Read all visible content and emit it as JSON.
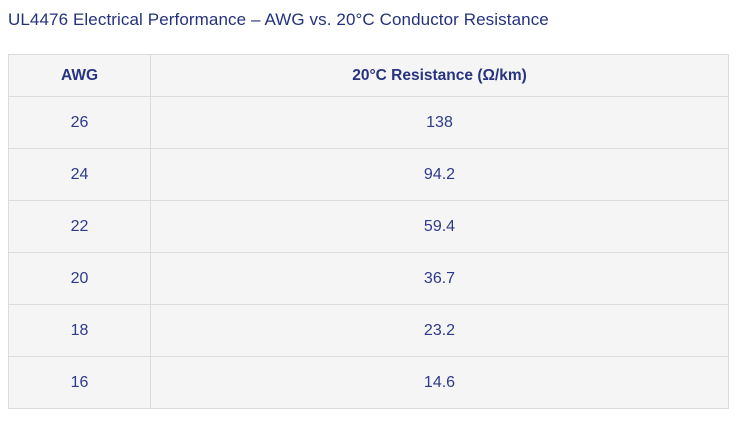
{
  "page": {
    "title": "UL4476 Electrical Performance – AWG vs. 20°C Conductor Resistance"
  },
  "table": {
    "columns": [
      {
        "label": "AWG"
      },
      {
        "label": "20°C Resistance (Ω/km)"
      }
    ],
    "rows": [
      {
        "awg": "26",
        "resistance": "138"
      },
      {
        "awg": "24",
        "resistance": "94.2"
      },
      {
        "awg": "22",
        "resistance": "59.4"
      },
      {
        "awg": "20",
        "resistance": "36.7"
      },
      {
        "awg": "18",
        "resistance": "23.2"
      },
      {
        "awg": "16",
        "resistance": "14.6"
      }
    ]
  },
  "colors": {
    "title_text": "#24327e",
    "header_text": "#27337f",
    "cell_text": "#2e3a8c",
    "cell_background": "#f5f5f6",
    "border": "#dcdcdc",
    "page_background": "#ffffff"
  }
}
